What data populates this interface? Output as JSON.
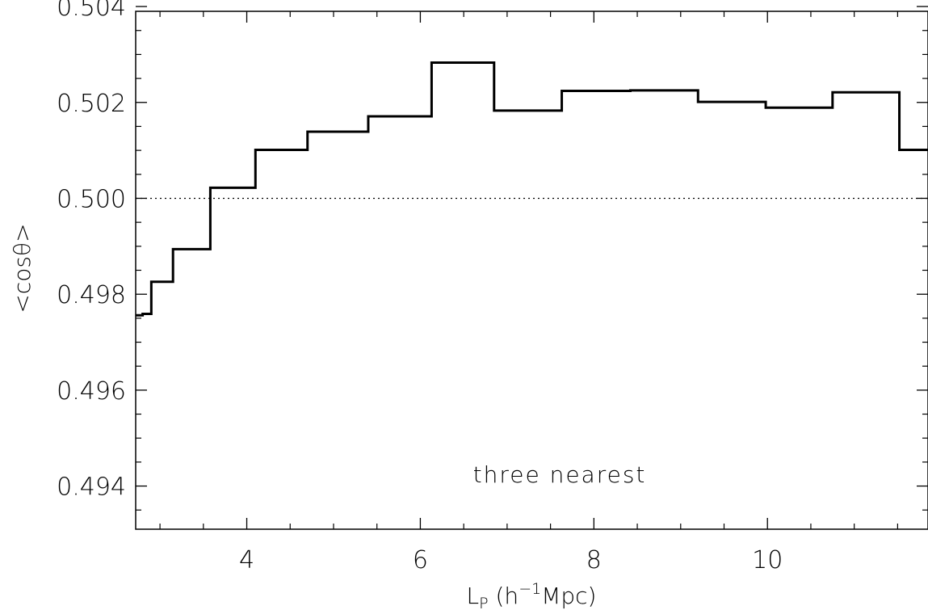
{
  "chart_data": {
    "type": "line",
    "step": true,
    "xlabel": "L",
    "xlabel_subscript": "P",
    "xlabel_unit_prefix": " (h",
    "xlabel_unit_exponent": "−1",
    "xlabel_unit_suffix": "Mpc)",
    "ylabel": "<cosθ>",
    "xlim": [
      2.72,
      11.85
    ],
    "ylim": [
      0.4931,
      0.5039
    ],
    "xticks": [
      4,
      6,
      8,
      10
    ],
    "xtick_labels": [
      "4",
      "6",
      "8",
      "10"
    ],
    "yticks": [
      0.494,
      0.496,
      0.498,
      0.5,
      0.502,
      0.504
    ],
    "ytick_labels": [
      "0.494",
      "0.496",
      "0.498",
      "0.500",
      "0.502",
      "0.504"
    ],
    "reference_line": {
      "y": 0.5,
      "style": "dotted"
    },
    "annotation": "three nearest",
    "series": [
      {
        "edges": [
          2.72,
          2.8,
          2.9,
          3.15,
          3.58,
          4.1,
          4.7,
          5.4,
          6.13,
          6.85,
          7.63,
          8.42,
          9.2,
          9.98,
          10.75,
          11.52,
          11.85
        ],
        "values": [
          0.49756,
          0.49759,
          0.49826,
          0.49894,
          0.50022,
          0.50101,
          0.50139,
          0.50171,
          0.50283,
          0.50183,
          0.50224,
          0.50225,
          0.50201,
          0.50189,
          0.50221,
          0.50101
        ]
      }
    ]
  }
}
